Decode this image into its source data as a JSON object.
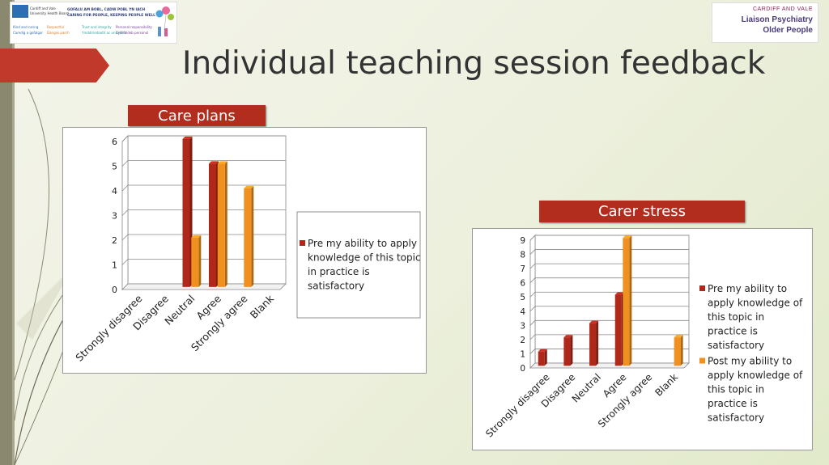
{
  "slide": {
    "title": "Individual teaching session feedback"
  },
  "logos": {
    "left": {
      "nhs_text": [
        "Cardiff and Vale",
        "University Health Board"
      ],
      "welsh_line": "GOFALU AM BOBL, CADW POBL YN IACH",
      "english_line": "CARING FOR PEOPLE, KEEPING PEOPLE WELL",
      "values": [
        "Kind and caring",
        "Respectful",
        "Trust and integrity",
        "Personal responsibility"
      ],
      "values_welsh": [
        "Caredig a gofalgar",
        "Dangos parch",
        "Ymddiriedaeth ac uniondeb",
        "Cyfrifoldeb personol"
      ],
      "colors": [
        "#2e6db4",
        "#e07b1a",
        "#2aa6a0",
        "#7a3d9a"
      ]
    },
    "right": {
      "small": "CARDIFF AND VALE",
      "line1": "Liaison Psychiatry",
      "line2": "Older People"
    }
  },
  "colors": {
    "pre": "#b0281a",
    "post": "#f0901e",
    "label_bg": "#b32d1e",
    "accent": "#c0392b"
  },
  "chart_data": [
    {
      "type": "bar",
      "title": "Care plans",
      "categories": [
        "Strongly disagree",
        "Disagree",
        "Neutral",
        "Agree",
        "Strongly agree",
        "Blank"
      ],
      "series": [
        {
          "name": "Pre my ability to apply knowledge of this topic in practice is satisfactory",
          "values": [
            0,
            0,
            6,
            5,
            0,
            0
          ]
        },
        {
          "name": "",
          "values": [
            0,
            0,
            2,
            5,
            4,
            0
          ]
        }
      ],
      "legend_entries": [
        "Pre my ability to apply knowledge of this topic in practice is satisfactory"
      ],
      "ylim": [
        0,
        6
      ],
      "yticks": [
        0,
        1,
        2,
        3,
        4,
        5,
        6
      ],
      "grid": true,
      "legend": "right"
    },
    {
      "type": "bar",
      "title": "Carer stress",
      "categories": [
        "Strongly disagree",
        "Disagree",
        "Neutral",
        "Agree",
        "Strongly agree",
        "Blank"
      ],
      "series": [
        {
          "name": "Pre my ability to apply knowledge of this topic in practice is satisfactory",
          "values": [
            1,
            2,
            3,
            5,
            0,
            0
          ]
        },
        {
          "name": "Post my ability to apply knowledge of this topic in practice is satisfactory",
          "values": [
            0,
            0,
            0,
            9,
            0,
            2
          ]
        }
      ],
      "legend_entries": [
        "Pre my ability to apply knowledge of this topic in practice is satisfactory",
        "Post my ability to apply knowledge of this topic in practice is satisfactory"
      ],
      "ylim": [
        0,
        9
      ],
      "yticks": [
        0,
        1,
        2,
        3,
        4,
        5,
        6,
        7,
        8,
        9
      ],
      "grid": true,
      "legend": "right"
    }
  ]
}
